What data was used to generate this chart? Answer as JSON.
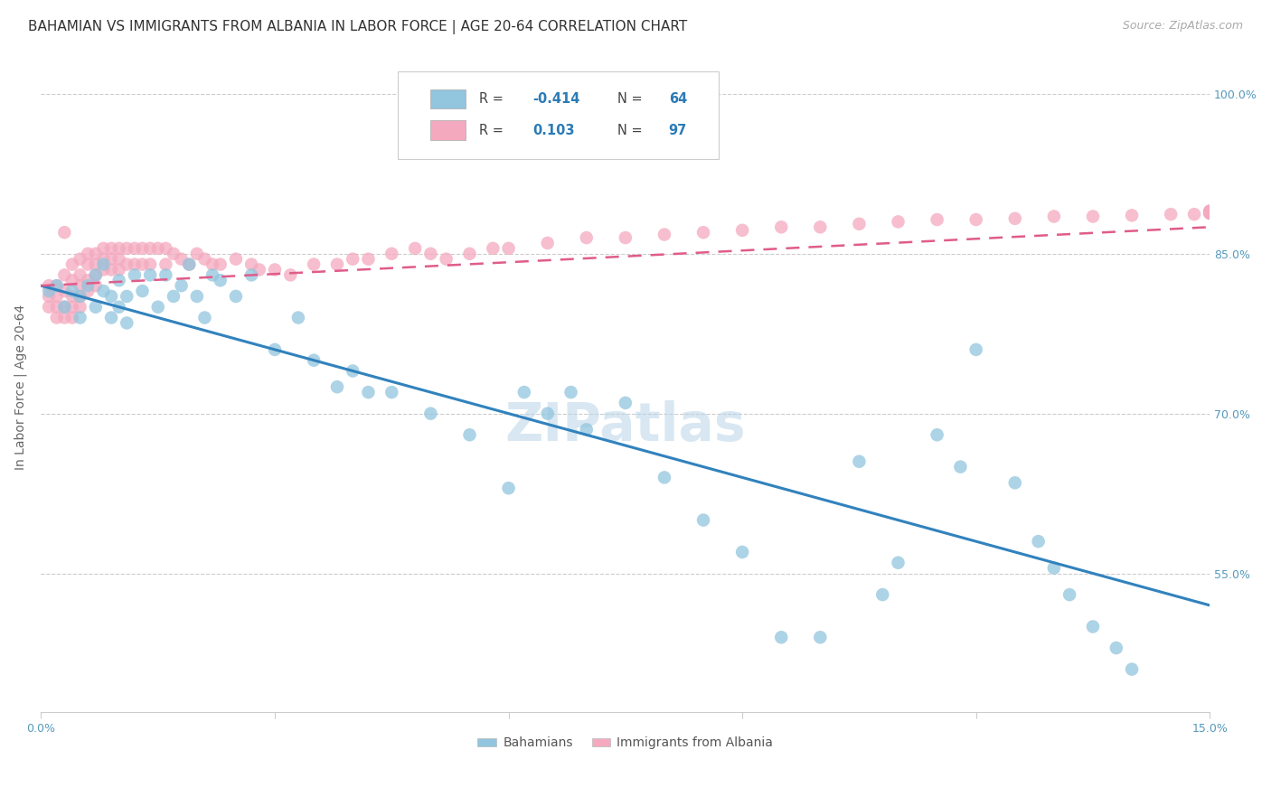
{
  "title": "BAHAMIAN VS IMMIGRANTS FROM ALBANIA IN LABOR FORCE | AGE 20-64 CORRELATION CHART",
  "source": "Source: ZipAtlas.com",
  "ylabel": "In Labor Force | Age 20-64",
  "xlim": [
    0.0,
    0.15
  ],
  "ylim": [
    0.42,
    1.03
  ],
  "ytick_positions": [
    0.55,
    0.7,
    0.85,
    1.0
  ],
  "yticklabels": [
    "55.0%",
    "70.0%",
    "85.0%",
    "100.0%"
  ],
  "watermark": "ZIPatlas",
  "legend_r_blue": "-0.414",
  "legend_n_blue": "64",
  "legend_r_pink": "0.103",
  "legend_n_pink": "97",
  "blue_color": "#92c5de",
  "pink_color": "#f4a9be",
  "blue_line_color": "#3182bd",
  "pink_line_color": "#e05c8a",
  "grid_color": "#cccccc",
  "background_color": "#ffffff",
  "blue_points_x": [
    0.001,
    0.002,
    0.003,
    0.004,
    0.005,
    0.005,
    0.006,
    0.007,
    0.007,
    0.008,
    0.008,
    0.009,
    0.009,
    0.01,
    0.01,
    0.011,
    0.011,
    0.012,
    0.013,
    0.014,
    0.015,
    0.016,
    0.017,
    0.018,
    0.019,
    0.02,
    0.021,
    0.022,
    0.023,
    0.025,
    0.027,
    0.03,
    0.033,
    0.035,
    0.038,
    0.04,
    0.042,
    0.045,
    0.05,
    0.055,
    0.06,
    0.062,
    0.065,
    0.068,
    0.07,
    0.075,
    0.08,
    0.085,
    0.09,
    0.095,
    0.1,
    0.105,
    0.108,
    0.11,
    0.115,
    0.118,
    0.12,
    0.125,
    0.128,
    0.13,
    0.132,
    0.135,
    0.138,
    0.14
  ],
  "blue_points_y": [
    0.815,
    0.82,
    0.8,
    0.815,
    0.81,
    0.79,
    0.82,
    0.8,
    0.83,
    0.815,
    0.84,
    0.79,
    0.81,
    0.825,
    0.8,
    0.785,
    0.81,
    0.83,
    0.815,
    0.83,
    0.8,
    0.83,
    0.81,
    0.82,
    0.84,
    0.81,
    0.79,
    0.83,
    0.825,
    0.81,
    0.83,
    0.76,
    0.79,
    0.75,
    0.725,
    0.74,
    0.72,
    0.72,
    0.7,
    0.68,
    0.63,
    0.72,
    0.7,
    0.72,
    0.685,
    0.71,
    0.64,
    0.6,
    0.57,
    0.49,
    0.49,
    0.655,
    0.53,
    0.56,
    0.68,
    0.65,
    0.76,
    0.635,
    0.58,
    0.555,
    0.53,
    0.5,
    0.48,
    0.46
  ],
  "pink_points_x": [
    0.001,
    0.001,
    0.001,
    0.002,
    0.002,
    0.002,
    0.002,
    0.003,
    0.003,
    0.003,
    0.003,
    0.003,
    0.004,
    0.004,
    0.004,
    0.004,
    0.004,
    0.005,
    0.005,
    0.005,
    0.005,
    0.005,
    0.006,
    0.006,
    0.006,
    0.006,
    0.007,
    0.007,
    0.007,
    0.007,
    0.008,
    0.008,
    0.008,
    0.009,
    0.009,
    0.009,
    0.01,
    0.01,
    0.01,
    0.011,
    0.011,
    0.012,
    0.012,
    0.013,
    0.013,
    0.014,
    0.014,
    0.015,
    0.016,
    0.016,
    0.017,
    0.018,
    0.019,
    0.02,
    0.021,
    0.022,
    0.023,
    0.025,
    0.027,
    0.028,
    0.03,
    0.032,
    0.035,
    0.038,
    0.04,
    0.042,
    0.045,
    0.048,
    0.05,
    0.052,
    0.055,
    0.058,
    0.06,
    0.065,
    0.07,
    0.075,
    0.08,
    0.085,
    0.09,
    0.095,
    0.1,
    0.105,
    0.11,
    0.115,
    0.12,
    0.125,
    0.13,
    0.135,
    0.14,
    0.145,
    0.148,
    0.15,
    0.15,
    0.15,
    0.15,
    0.15,
    0.15
  ],
  "pink_points_y": [
    0.81,
    0.82,
    0.8,
    0.82,
    0.81,
    0.8,
    0.79,
    0.87,
    0.83,
    0.815,
    0.8,
    0.79,
    0.84,
    0.825,
    0.81,
    0.8,
    0.79,
    0.845,
    0.83,
    0.82,
    0.81,
    0.8,
    0.85,
    0.84,
    0.825,
    0.815,
    0.85,
    0.84,
    0.83,
    0.82,
    0.855,
    0.845,
    0.835,
    0.855,
    0.845,
    0.835,
    0.855,
    0.845,
    0.835,
    0.855,
    0.84,
    0.855,
    0.84,
    0.855,
    0.84,
    0.855,
    0.84,
    0.855,
    0.855,
    0.84,
    0.85,
    0.845,
    0.84,
    0.85,
    0.845,
    0.84,
    0.84,
    0.845,
    0.84,
    0.835,
    0.835,
    0.83,
    0.84,
    0.84,
    0.845,
    0.845,
    0.85,
    0.855,
    0.85,
    0.845,
    0.85,
    0.855,
    0.855,
    0.86,
    0.865,
    0.865,
    0.868,
    0.87,
    0.872,
    0.875,
    0.875,
    0.878,
    0.88,
    0.882,
    0.882,
    0.883,
    0.885,
    0.885,
    0.886,
    0.887,
    0.887,
    0.888,
    0.888,
    0.889,
    0.889,
    0.89,
    0.89
  ],
  "title_fontsize": 11,
  "axis_label_fontsize": 10,
  "tick_fontsize": 9,
  "source_fontsize": 9,
  "watermark_fontsize": 42,
  "watermark_color": "#b8d4e8",
  "watermark_alpha": 0.55
}
